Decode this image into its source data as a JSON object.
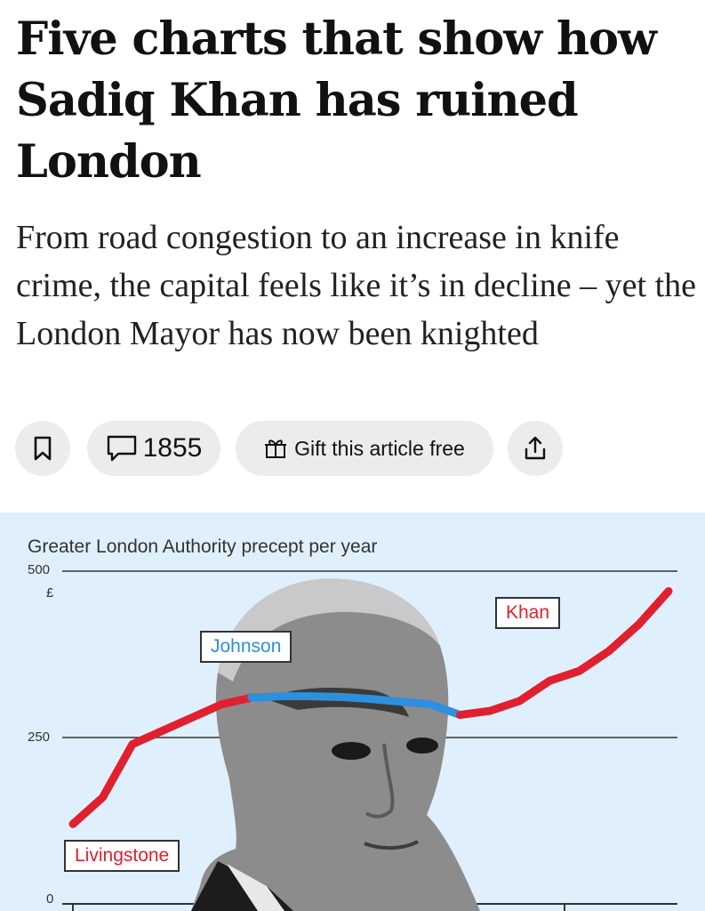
{
  "article": {
    "headline": "Five charts that show how Sadiq Khan has ruined London",
    "standfirst": "From road congestion to an increase in knife crime, the capital feels like it’s in decline – yet the London Mayor has now been knighted"
  },
  "actions": {
    "bookmark_icon": "bookmark-icon",
    "comments_icon": "comment-bubble-icon",
    "comment_count": "1855",
    "gift_icon": "gift-icon",
    "gift_label": "Gift this article free",
    "share_icon": "share-icon",
    "pill_color": "#ececec"
  },
  "chart_data": {
    "type": "line",
    "title": "Greater London Authority precept per year",
    "unit": "£",
    "ylim": [
      0,
      500
    ],
    "y_ticks": [
      "500",
      "250",
      "0"
    ],
    "grid": true,
    "background": "#dff0fc",
    "segments": [
      {
        "name": "Livingstone",
        "color": "#e0202f",
        "values": [
          120,
          160,
          240,
          260,
          280,
          300,
          310
        ]
      },
      {
        "name": "Johnson",
        "color": "#2e8fde",
        "values": [
          310,
          312,
          312,
          311,
          308,
          304,
          300,
          284
        ]
      },
      {
        "name": "Khan",
        "color": "#e0202f",
        "values": [
          284,
          290,
          305,
          335,
          350,
          380,
          420,
          470
        ]
      }
    ]
  }
}
